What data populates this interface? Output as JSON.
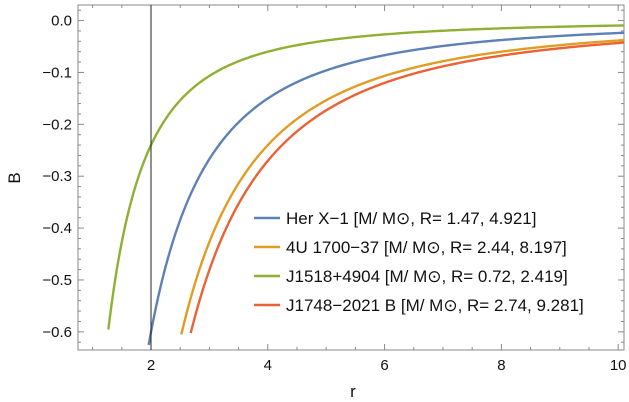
{
  "chart_data": {
    "type": "line",
    "xlabel": "r",
    "ylabel": "B",
    "xlim": [
      0.75,
      10.1
    ],
    "ylim": [
      -0.635,
      0.03
    ],
    "xticks": [
      2,
      4,
      6,
      8,
      10
    ],
    "xtick_labels": [
      "2",
      "4",
      "6",
      "8",
      "10"
    ],
    "yticks": [
      0.0,
      -0.1,
      -0.2,
      -0.3,
      -0.4,
      -0.5,
      -0.6
    ],
    "ytick_labels": [
      "0.0",
      "−0.1",
      "−0.2",
      "−0.3",
      "−0.4",
      "−0.5",
      "−0.6"
    ],
    "vertical_line_x": 2,
    "grid": false,
    "legend_position": "bottom-right",
    "curve_formula": "B = -R_g^2 / r^2",
    "series": [
      {
        "name": "Her X−1 [M/ M⊙, R= 1.47, 4.921]",
        "rg": 1.55,
        "r_start": 1.96,
        "color": "#5e81b5"
      },
      {
        "name": "4U 1700−37 [M/ M⊙, R= 2.44, 8.197]",
        "rg": 1.96,
        "r_start": 2.52,
        "color": "#e19c24"
      },
      {
        "name": "J1518+4904 [M/ M⊙, R= 0.72, 2.419]",
        "rg": 0.98,
        "r_start": 1.27,
        "color": "#8fb032"
      },
      {
        "name": "J1748−2021 B [M/ M⊙, R= 2.74, 9.281]",
        "rg": 2.08,
        "r_start": 2.68,
        "color": "#eb6235"
      }
    ]
  }
}
